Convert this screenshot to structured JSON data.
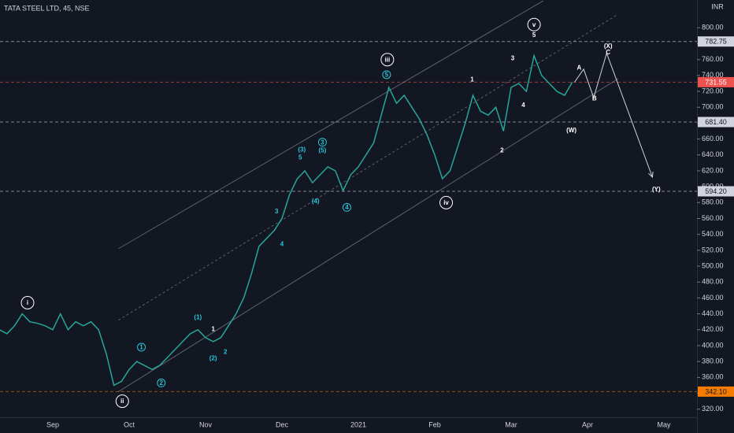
{
  "chart_data": {
    "type": "line",
    "title": "TATA STEEL LTD, 45, NSE",
    "currency": "INR",
    "categories": [
      null,
      null,
      null,
      null,
      null,
      null,
      null,
      "Sep",
      null,
      null,
      null,
      null,
      null,
      null,
      null,
      null,
      null,
      "Oct",
      null,
      null,
      null,
      null,
      null,
      null,
      null,
      null,
      null,
      "Nov",
      null,
      null,
      null,
      null,
      null,
      null,
      null,
      null,
      null,
      "Dec",
      null,
      null,
      null,
      null,
      null,
      null,
      null,
      null,
      null,
      "2021",
      null,
      null,
      null,
      null,
      null,
      null,
      null,
      null,
      null,
      "Feb",
      null,
      null,
      null,
      null,
      null,
      null,
      null,
      null,
      null,
      "Mar",
      null,
      null,
      null,
      null,
      null,
      null,
      null,
      null,
      null,
      "Apr",
      null,
      null,
      null,
      null,
      null,
      null,
      null,
      null,
      null,
      "May",
      null,
      null,
      null,
      null
    ],
    "series": [
      {
        "name": "TATA STEEL LTD",
        "color": "#26a69a",
        "values": [
          420,
          415,
          425,
          440,
          430,
          428,
          425,
          420,
          440,
          420,
          430,
          425,
          430,
          420,
          390,
          350,
          355,
          370,
          380,
          375,
          370,
          375,
          385,
          395,
          405,
          415,
          420,
          410,
          405,
          410,
          425,
          440,
          460,
          490,
          525,
          535,
          545,
          560,
          590,
          610,
          620,
          605,
          615,
          625,
          620,
          595,
          615,
          625,
          640,
          655,
          690,
          725,
          705,
          715,
          700,
          685,
          665,
          640,
          610,
          620,
          650,
          680,
          715,
          695,
          690,
          700,
          670,
          725,
          730,
          720,
          765,
          740,
          730,
          720,
          715,
          731.55,
          null,
          null,
          null,
          null,
          null,
          null,
          null,
          null,
          null,
          null,
          null,
          null,
          null,
          null,
          null,
          null
        ]
      }
    ],
    "ylim": [
      290,
      835
    ],
    "yticks": [
      {
        "value": 320,
        "label": "320.00"
      },
      {
        "value": 340,
        "label": "340.00"
      },
      {
        "value": 360,
        "label": "360.00"
      },
      {
        "value": 380,
        "label": "380.00"
      },
      {
        "value": 400,
        "label": "400.00"
      },
      {
        "value": 420,
        "label": "420.00"
      },
      {
        "value": 440,
        "label": "440.00"
      },
      {
        "value": 460,
        "label": "460.00"
      },
      {
        "value": 480,
        "label": "480.00"
      },
      {
        "value": 500,
        "label": "500.00"
      },
      {
        "value": 520,
        "label": "520.00"
      },
      {
        "value": 540,
        "label": "540.00"
      },
      {
        "value": 560,
        "label": "560.00"
      },
      {
        "value": 580,
        "label": "580.00"
      },
      {
        "value": 600,
        "label": "600.00"
      },
      {
        "value": 620,
        "label": "620.00"
      },
      {
        "value": 640,
        "label": "640.00"
      },
      {
        "value": 660,
        "label": "660.00"
      },
      {
        "value": 680,
        "label": "680.00"
      },
      {
        "value": 700,
        "label": "700.00"
      },
      {
        "value": 720,
        "label": "720.00"
      },
      {
        "value": 740,
        "label": "740.00"
      },
      {
        "value": 760,
        "label": "760.00"
      },
      {
        "value": 780,
        "label": "780.00"
      },
      {
        "value": 800,
        "label": "800.00"
      }
    ],
    "grid": false,
    "levels": [
      {
        "value": 782.75,
        "label": "782.75",
        "color": "#d1d4dc",
        "text_color": "#131722"
      },
      {
        "value": 731.55,
        "label": "731.55",
        "color": "#ef5350",
        "text_color": "#ffffff"
      },
      {
        "value": 681.4,
        "label": "681.40",
        "color": "#d1d4dc",
        "text_color": "#131722"
      },
      {
        "value": 594.2,
        "label": "594.20",
        "color": "#d1d4dc",
        "text_color": "#131722"
      },
      {
        "value": 342.1,
        "label": "342.10",
        "color": "#f57c00",
        "text_color": "#131722"
      }
    ],
    "trendlines": [
      {
        "x": [
          15.6,
          71.2
        ],
        "y": [
          522,
          834
        ],
        "dashed": false
      },
      {
        "x": [
          15.6,
          81
        ],
        "y": [
          432,
          817
        ],
        "dashed": true
      },
      {
        "x": [
          15.6,
          81
        ],
        "y": [
          342,
          736
        ],
        "dashed": false
      }
    ],
    "projection": {
      "x": [
        75.3,
        76.5,
        77.8,
        79.5,
        85.5
      ],
      "y": [
        731.55,
        748,
        712,
        768,
        612
      ]
    },
    "annotations": [
      {
        "text": "i",
        "x": 3.7,
        "y": 454,
        "color": "#ffffff",
        "circled": true
      },
      {
        "text": "ii",
        "x": 16.1,
        "y": 330,
        "color": "#ffffff",
        "circled": true
      },
      {
        "text": "1",
        "x": 18.6,
        "y": 398,
        "color": "#26c6da",
        "circled": true
      },
      {
        "text": "2",
        "x": 21.2,
        "y": 353,
        "color": "#26c6da",
        "circled": true
      },
      {
        "text": "(1)",
        "x": 26,
        "y": 436,
        "color": "#26c6da",
        "circled": false
      },
      {
        "text": "1",
        "x": 28,
        "y": 421,
        "color": "#ffffff",
        "circled": false
      },
      {
        "text": "(2)",
        "x": 28,
        "y": 384,
        "color": "#26c6da",
        "circled": false
      },
      {
        "text": "2",
        "x": 29.6,
        "y": 392,
        "color": "#26c6da",
        "circled": false
      },
      {
        "text": "3",
        "x": 36.3,
        "y": 569,
        "color": "#26c6da",
        "circled": false
      },
      {
        "text": "4",
        "x": 37,
        "y": 528,
        "color": "#26c6da",
        "circled": false
      },
      {
        "text": "(3)",
        "x": 39.6,
        "y": 647,
        "color": "#26c6da",
        "circled": false
      },
      {
        "text": "5",
        "x": 39.4,
        "y": 637,
        "color": "#26c6da",
        "circled": false
      },
      {
        "text": "(4)",
        "x": 41.4,
        "y": 582,
        "color": "#26c6da",
        "circled": false
      },
      {
        "text": "3",
        "x": 42.3,
        "y": 656,
        "color": "#26c6da",
        "circled": true
      },
      {
        "text": "(5)",
        "x": 42.3,
        "y": 646,
        "color": "#26c6da",
        "circled": false
      },
      {
        "text": "4",
        "x": 45.5,
        "y": 574,
        "color": "#26c6da",
        "circled": true
      },
      {
        "text": "5",
        "x": 50.7,
        "y": 741,
        "color": "#26c6da",
        "circled": true
      },
      {
        "text": "iii",
        "x": 50.8,
        "y": 760,
        "color": "#ffffff",
        "circled": true
      },
      {
        "text": "iv",
        "x": 58.5,
        "y": 580,
        "color": "#ffffff",
        "circled": true
      },
      {
        "text": "1",
        "x": 61.9,
        "y": 735,
        "color": "#ffffff",
        "circled": false
      },
      {
        "text": "2",
        "x": 65.8,
        "y": 646,
        "color": "#ffffff",
        "circled": false
      },
      {
        "text": "3",
        "x": 67.2,
        "y": 762,
        "color": "#ffffff",
        "circled": false
      },
      {
        "text": "4",
        "x": 68.6,
        "y": 703,
        "color": "#ffffff",
        "circled": false
      },
      {
        "text": "v",
        "x": 70,
        "y": 804,
        "color": "#ffffff",
        "circled": true
      },
      {
        "text": "5",
        "x": 70,
        "y": 791,
        "color": "#ffffff",
        "circled": false
      },
      {
        "text": "(W)",
        "x": 74.9,
        "y": 671,
        "color": "#ffffff",
        "circled": false
      },
      {
        "text": "A",
        "x": 75.9,
        "y": 750,
        "color": "#ffffff",
        "circled": false
      },
      {
        "text": "B",
        "x": 77.9,
        "y": 711,
        "color": "#ffffff",
        "circled": false
      },
      {
        "text": "(X)",
        "x": 79.7,
        "y": 777,
        "color": "#ffffff",
        "circled": false
      },
      {
        "text": "C",
        "x": 79.7,
        "y": 769,
        "color": "#ffffff",
        "circled": false
      },
      {
        "text": "(Y)",
        "x": 86,
        "y": 597,
        "color": "#ffffff",
        "circled": false
      }
    ]
  }
}
